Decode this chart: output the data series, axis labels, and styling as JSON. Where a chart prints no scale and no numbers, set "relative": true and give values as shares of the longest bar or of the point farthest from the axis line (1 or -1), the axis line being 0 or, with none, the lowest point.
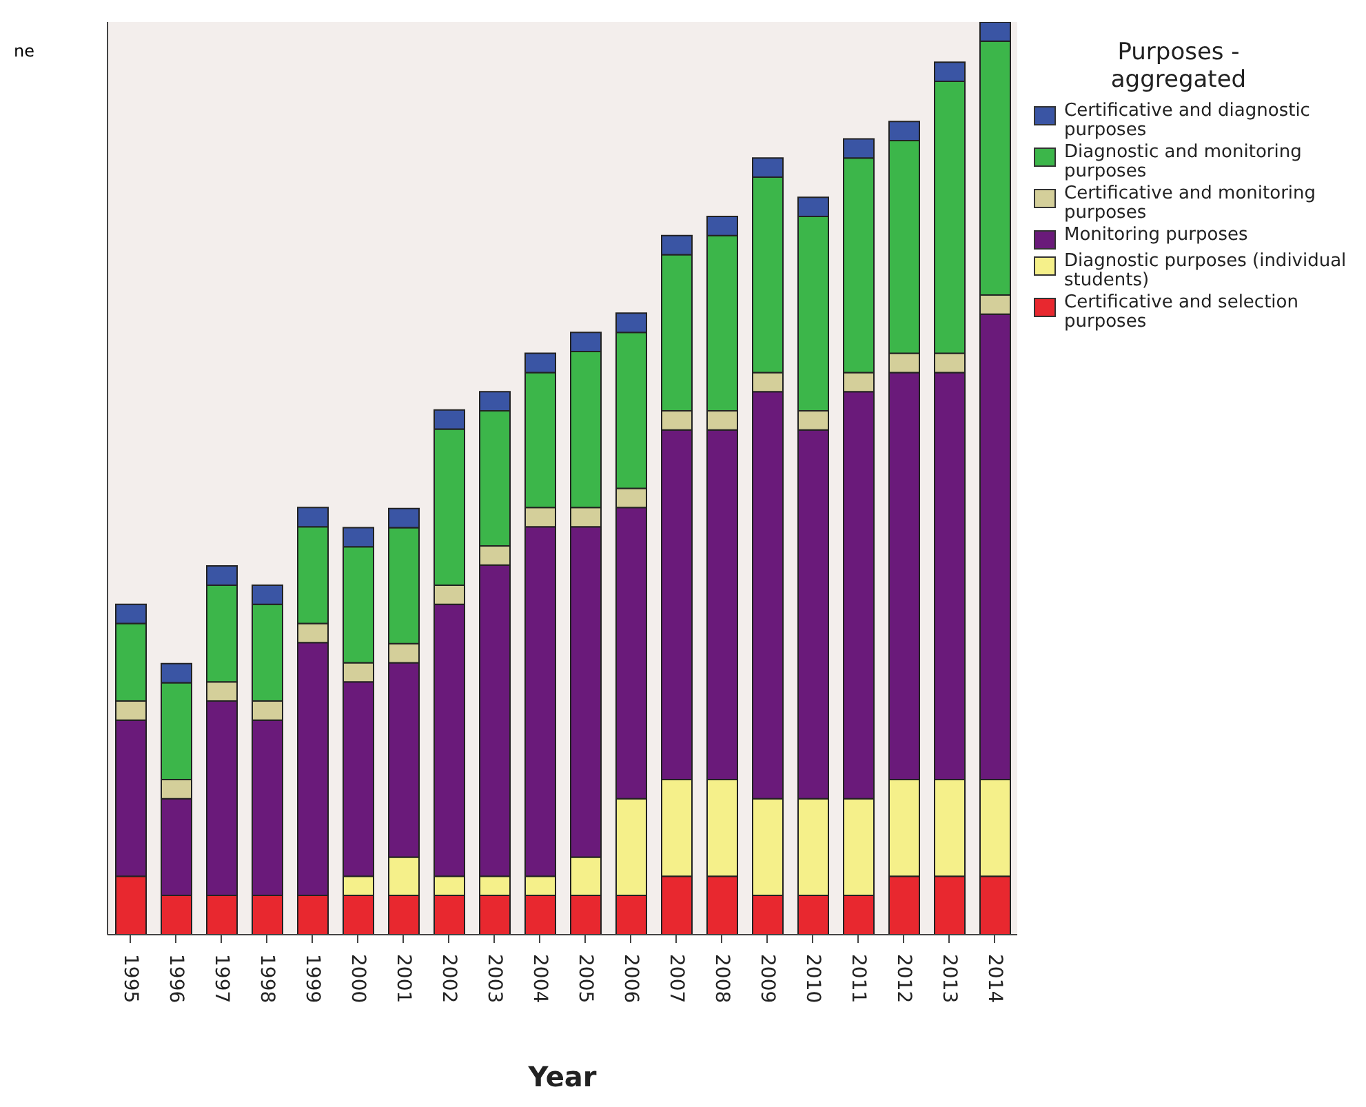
{
  "chart_data": {
    "type": "bar",
    "stacked": true,
    "relative": true,
    "xlabel": "Year",
    "ylabel": "ne",
    "legend_title": "Purposes - aggregated",
    "legend": "right",
    "grid": false,
    "categories": [
      "1995",
      "1996",
      "1997",
      "1998",
      "1999",
      "2000",
      "2001",
      "2002",
      "2003",
      "2004",
      "2005",
      "2006",
      "2007",
      "2008",
      "2009",
      "2010",
      "2011",
      "2012",
      "2013",
      "2014"
    ],
    "series": [
      {
        "name": "Certificative and selection purposes",
        "color": "#e8282f",
        "values": [
          0.064,
          0.043,
          0.043,
          0.043,
          0.043,
          0.043,
          0.043,
          0.043,
          0.043,
          0.043,
          0.043,
          0.043,
          0.064,
          0.064,
          0.043,
          0.043,
          0.043,
          0.064,
          0.064,
          0.064
        ]
      },
      {
        "name": "Diagnostic purposes (individual students)",
        "color": "#f5f08a",
        "values": [
          0,
          0,
          0,
          0,
          0,
          0.021,
          0.042,
          0.021,
          0.021,
          0.021,
          0.042,
          0.106,
          0.106,
          0.106,
          0.106,
          0.106,
          0.106,
          0.106,
          0.106,
          0.106
        ]
      },
      {
        "name": "Monitoring purposes",
        "color": "#6a1a7a",
        "values": [
          0.171,
          0.106,
          0.213,
          0.192,
          0.277,
          0.213,
          0.213,
          0.298,
          0.341,
          0.383,
          0.362,
          0.319,
          0.383,
          0.383,
          0.446,
          0.404,
          0.446,
          0.446,
          0.446,
          0.51
        ]
      },
      {
        "name": "Certificative and monitoring purposes",
        "color": "#d4cf9a",
        "values": [
          0.021,
          0.021,
          0.021,
          0.021,
          0.021,
          0.021,
          0.021,
          0.021,
          0.021,
          0.021,
          0.021,
          0.021,
          0.021,
          0.021,
          0.021,
          0.021,
          0.021,
          0.021,
          0.021,
          0.021
        ]
      },
      {
        "name": "Diagnostic and monitoring purposes",
        "color": "#3cb64a",
        "values": [
          0.085,
          0.106,
          0.106,
          0.106,
          0.106,
          0.127,
          0.127,
          0.171,
          0.148,
          0.148,
          0.171,
          0.171,
          0.171,
          0.192,
          0.214,
          0.213,
          0.235,
          0.233,
          0.298,
          0.278
        ]
      },
      {
        "name": "Certificative and diagnostic purposes",
        "color": "#3a55a4",
        "values": [
          0.021,
          0.021,
          0.021,
          0.021,
          0.021,
          0.021,
          0.021,
          0.021,
          0.021,
          0.021,
          0.021,
          0.021,
          0.021,
          0.021,
          0.021,
          0.021,
          0.021,
          0.021,
          0.021,
          0.021
        ]
      }
    ]
  }
}
